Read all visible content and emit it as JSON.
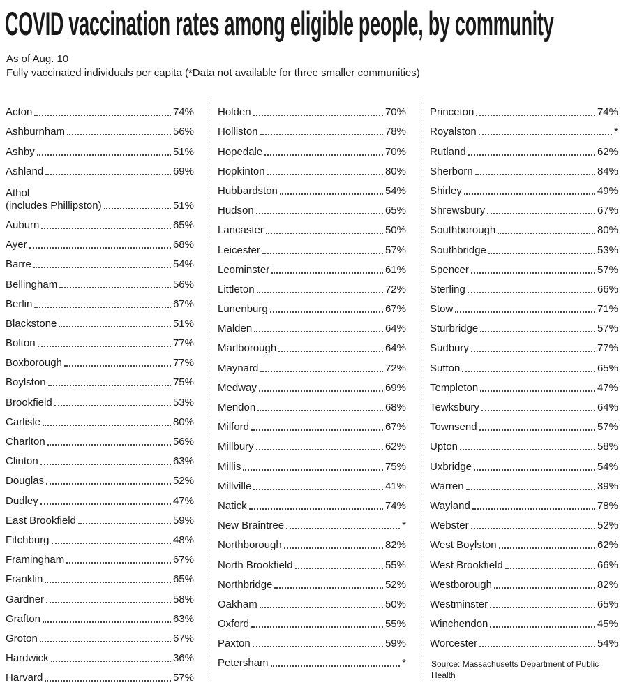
{
  "title": "COVID vaccination rates among eligible people, by community",
  "subtitle": "As of Aug. 10",
  "description": "Fully vaccinated individuals per capita (*Data not available for three smaller communities)",
  "columns": [
    [
      {
        "name": "Acton",
        "value": "74%"
      },
      {
        "name": "Ashburnham",
        "value": "56%"
      },
      {
        "name": "Ashby",
        "value": "51%"
      },
      {
        "name": "Ashland",
        "value": "69%"
      },
      {
        "name": "Athol\n(includes Phillipston)",
        "value": "51%"
      },
      {
        "name": "Auburn",
        "value": "65%"
      },
      {
        "name": "Ayer",
        "value": "68%"
      },
      {
        "name": "Barre",
        "value": "54%"
      },
      {
        "name": "Bellingham",
        "value": "56%"
      },
      {
        "name": "Berlin",
        "value": "67%"
      },
      {
        "name": "Blackstone",
        "value": "51%"
      },
      {
        "name": "Bolton",
        "value": "77%"
      },
      {
        "name": "Boxborough",
        "value": "77%"
      },
      {
        "name": "Boylston",
        "value": "75%"
      },
      {
        "name": "Brookfield",
        "value": "53%"
      },
      {
        "name": "Carlisle",
        "value": "80%"
      },
      {
        "name": "Charlton",
        "value": "56%"
      },
      {
        "name": "Clinton",
        "value": "63%"
      },
      {
        "name": "Douglas",
        "value": "52%"
      },
      {
        "name": "Dudley",
        "value": "47%"
      },
      {
        "name": "East Brookfield",
        "value": "59%"
      },
      {
        "name": "Fitchburg",
        "value": "48%"
      },
      {
        "name": "Framingham",
        "value": "67%"
      },
      {
        "name": "Franklin",
        "value": "65%"
      },
      {
        "name": "Gardner",
        "value": "58%"
      },
      {
        "name": "Grafton",
        "value": "63%"
      },
      {
        "name": "Groton",
        "value": "67%"
      },
      {
        "name": "Hardwick",
        "value": "36%"
      },
      {
        "name": "Harvard",
        "value": "57%"
      }
    ],
    [
      {
        "name": "Holden",
        "value": "70%"
      },
      {
        "name": "Holliston",
        "value": "78%"
      },
      {
        "name": "Hopedale",
        "value": "70%"
      },
      {
        "name": "Hopkinton",
        "value": "80%"
      },
      {
        "name": "Hubbardston",
        "value": "54%"
      },
      {
        "name": "Hudson",
        "value": "65%"
      },
      {
        "name": "Lancaster",
        "value": "50%"
      },
      {
        "name": "Leicester",
        "value": "57%"
      },
      {
        "name": "Leominster",
        "value": "61%"
      },
      {
        "name": "Littleton",
        "value": "72%"
      },
      {
        "name": "Lunenburg",
        "value": "67%"
      },
      {
        "name": "Malden",
        "value": "64%"
      },
      {
        "name": "Marlborough",
        "value": "64%"
      },
      {
        "name": "Maynard",
        "value": "72%"
      },
      {
        "name": "Medway",
        "value": "69%"
      },
      {
        "name": "Mendon",
        "value": "68%"
      },
      {
        "name": "Milford",
        "value": "67%"
      },
      {
        "name": "Millbury",
        "value": "62%"
      },
      {
        "name": "Millis",
        "value": "75%"
      },
      {
        "name": "Millville",
        "value": "41%"
      },
      {
        "name": "Natick",
        "value": "74%"
      },
      {
        "name": "New Braintree",
        "value": "*"
      },
      {
        "name": "Northborough",
        "value": "82%"
      },
      {
        "name": "North Brookfield",
        "value": "55%"
      },
      {
        "name": "Northbridge",
        "value": "52%"
      },
      {
        "name": "Oakham",
        "value": "50%"
      },
      {
        "name": "Oxford",
        "value": "55%"
      },
      {
        "name": "Paxton",
        "value": "59%"
      },
      {
        "name": "Petersham",
        "value": "*"
      }
    ],
    [
      {
        "name": "Princeton",
        "value": "74%"
      },
      {
        "name": "Royalston",
        "value": "*"
      },
      {
        "name": "Rutland",
        "value": "62%"
      },
      {
        "name": "Sherborn",
        "value": "84%"
      },
      {
        "name": "Shirley",
        "value": "49%"
      },
      {
        "name": "Shrewsbury",
        "value": "67%"
      },
      {
        "name": "Southborough",
        "value": "80%"
      },
      {
        "name": "Southbridge",
        "value": "53%"
      },
      {
        "name": "Spencer",
        "value": "57%"
      },
      {
        "name": "Sterling",
        "value": "66%"
      },
      {
        "name": "Stow",
        "value": "71%"
      },
      {
        "name": "Sturbridge",
        "value": "57%"
      },
      {
        "name": "Sudbury",
        "value": "77%"
      },
      {
        "name": "Sutton",
        "value": "65%"
      },
      {
        "name": "Templeton",
        "value": "47%"
      },
      {
        "name": "Tewksbury",
        "value": "64%"
      },
      {
        "name": "Townsend",
        "value": "57%"
      },
      {
        "name": "Upton",
        "value": "58%"
      },
      {
        "name": "Uxbridge",
        "value": "54%"
      },
      {
        "name": "Warren",
        "value": "39%"
      },
      {
        "name": "Wayland",
        "value": "78%"
      },
      {
        "name": "Webster",
        "value": "52%"
      },
      {
        "name": "West Boylston",
        "value": "62%"
      },
      {
        "name": "West Brookfield",
        "value": "66%"
      },
      {
        "name": "Westborough",
        "value": "82%"
      },
      {
        "name": "Westminster",
        "value": "65%"
      },
      {
        "name": "Winchendon",
        "value": "45%"
      },
      {
        "name": "Worcester",
        "value": "54%"
      }
    ]
  ],
  "source": "Source: Massachusetts Department of Public Health"
}
